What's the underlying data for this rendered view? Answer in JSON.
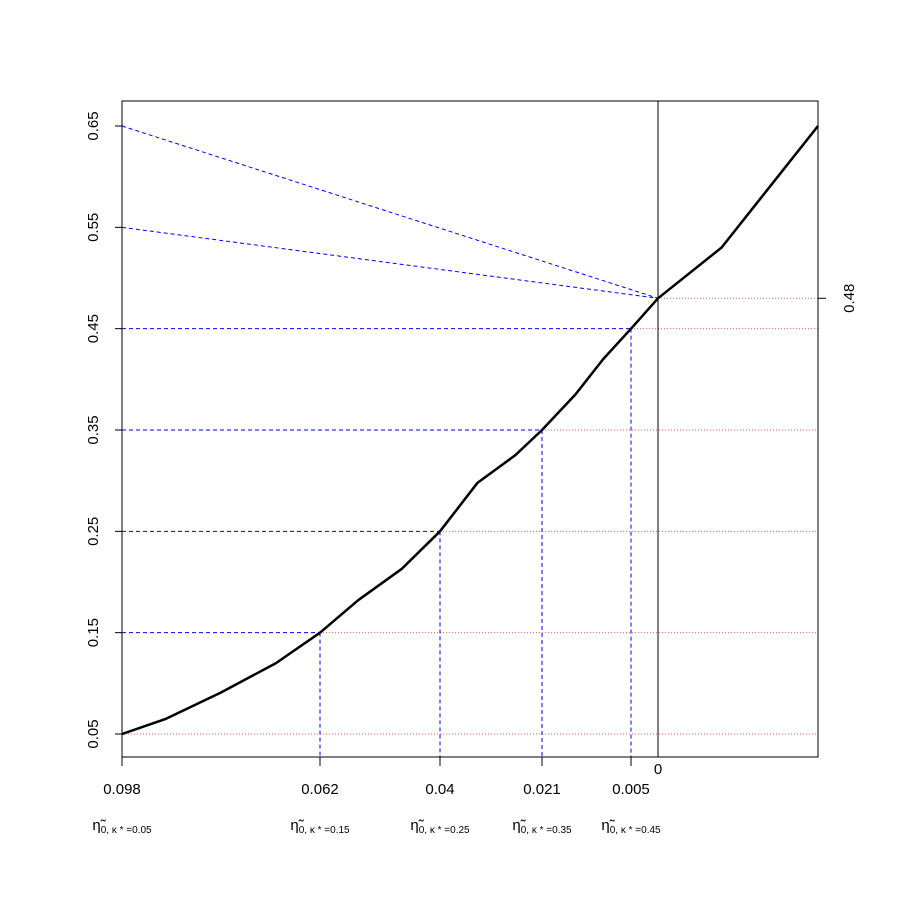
{
  "chart_data": {
    "type": "line",
    "title": "",
    "xlabel": "",
    "ylabel": "",
    "y_axis": {
      "range": [
        0.03,
        0.665
      ],
      "ticks": [
        0.05,
        0.15,
        0.25,
        0.35,
        0.45,
        0.55,
        0.65
      ],
      "tick_labels": [
        "0.05",
        "0.15",
        "0.25",
        "0.35",
        "0.45",
        "0.55",
        "0.65"
      ]
    },
    "x_axis": {
      "range": [
        0.098,
        -0.0126
      ],
      "reversed": true,
      "ticks": [
        0.098,
        0.062,
        0.04,
        0.021,
        0.005,
        0
      ],
      "tick_labels": [
        "0.098",
        "0.062",
        "0.04",
        "0.021",
        "0.005",
        "0"
      ],
      "ticks_with_marks": [
        0.098,
        0.062,
        0.04,
        0.021,
        0.005
      ]
    },
    "right_axis": {
      "ticks": [
        0.48
      ],
      "tick_labels": [
        "0.48"
      ]
    },
    "eta_labels": {
      "symbol": "η̃",
      "subscript_prefix": "0, κ * =",
      "items": [
        {
          "x": 0.098,
          "kappa": "0.05"
        },
        {
          "x": 0.062,
          "kappa": "0.15"
        },
        {
          "x": 0.04,
          "kappa": "0.25"
        },
        {
          "x": 0.021,
          "kappa": "0.35"
        },
        {
          "x": 0.005,
          "kappa": "0.45"
        }
      ]
    },
    "series": [
      {
        "style": "solid-black",
        "x": [
          0.098,
          0.09,
          0.08,
          0.07,
          0.062,
          0.055,
          0.047,
          0.04,
          0.033,
          0.026,
          0.021,
          0.015,
          0.01,
          0.005,
          0,
          -0.005,
          -0.0126
        ],
        "y": [
          0.05,
          0.065,
          0.091,
          0.12,
          0.15,
          0.182,
          0.213,
          0.25,
          0.298,
          0.325,
          0.35,
          0.385,
          0.42,
          0.45,
          0.48,
          0.53,
          0.65
        ]
      }
    ],
    "reference_points": [
      {
        "x": 0.062,
        "y": 0.15
      },
      {
        "x": 0.04,
        "y": 0.25
      },
      {
        "x": 0.021,
        "y": 0.35
      },
      {
        "x": 0.005,
        "y": 0.45
      }
    ],
    "vertical_line_x": 0,
    "red_dotted_levels": [
      0.05,
      0.15,
      0.25,
      0.35,
      0.45,
      0.48
    ],
    "diagonal_lines": [
      {
        "from": [
          0.098,
          0.65
        ],
        "to": [
          0,
          0.48
        ]
      },
      {
        "from": [
          0.098,
          0.55
        ],
        "to": [
          0,
          0.48
        ]
      }
    ],
    "colors": {
      "curve": "#000000",
      "guides": "#0000ff",
      "dotted": "#e06060",
      "axes": "#000000"
    },
    "grid": false,
    "legend": "none"
  }
}
